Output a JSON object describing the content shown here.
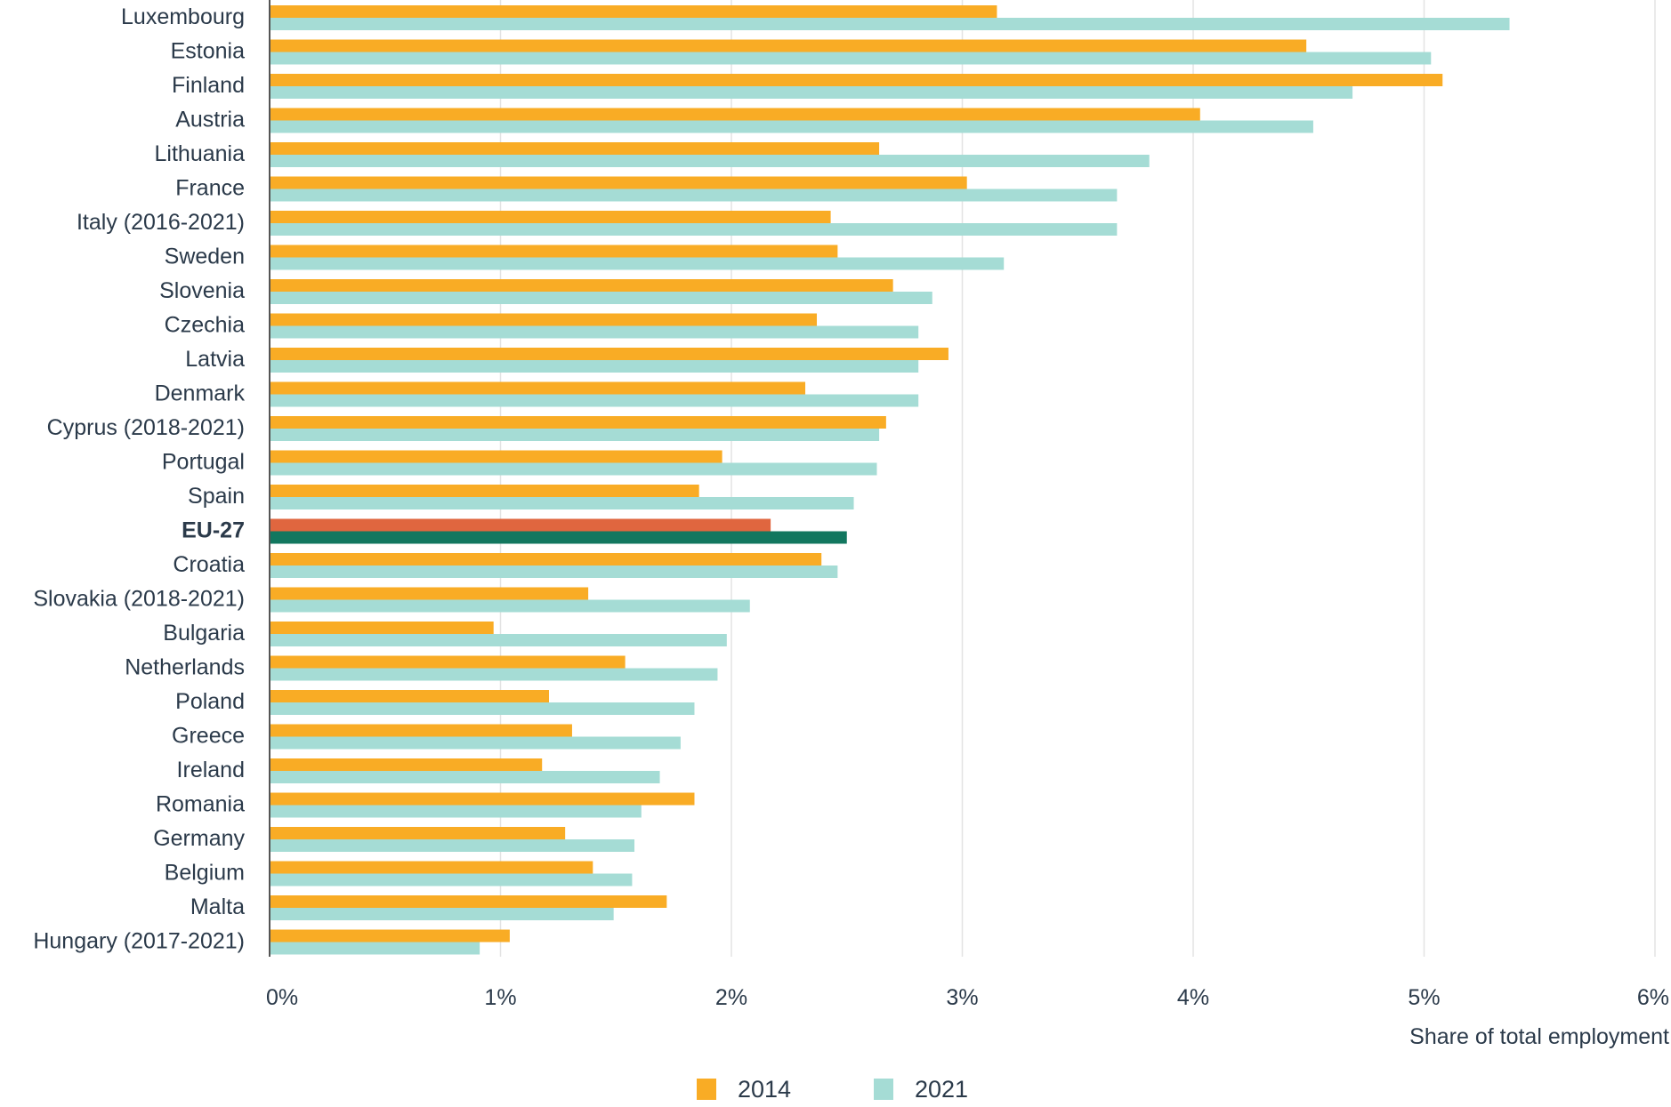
{
  "chart_data": {
    "type": "bar",
    "orientation": "horizontal",
    "xlabel": "Share of total employment",
    "xlim": [
      0,
      6
    ],
    "xticks": [
      "0%",
      "1%",
      "2%",
      "3%",
      "4%",
      "5%",
      "6%"
    ],
    "grid": "vertical",
    "legend_position": "bottom",
    "categories": [
      "Luxembourg",
      "Estonia",
      "Finland",
      "Austria",
      "Lithuania",
      "France",
      "Italy (2016-2021)",
      "Sweden",
      "Slovenia",
      "Czechia",
      "Latvia",
      "Denmark",
      "Cyprus (2018-2021)",
      "Portugal",
      "Spain",
      "EU-27",
      "Croatia",
      "Slovakia (2018-2021)",
      "Bulgaria",
      "Netherlands",
      "Poland",
      "Greece",
      "Ireland",
      "Romania",
      "Germany",
      "Belgium",
      "Malta",
      "Hungary (2017-2021)"
    ],
    "highlight_category": "EU-27",
    "series": [
      {
        "name": "2014",
        "color": "#f9ac25",
        "highlight_color": "#e0663f",
        "values": [
          3.15,
          4.49,
          5.08,
          4.03,
          2.64,
          3.02,
          2.43,
          2.46,
          2.7,
          2.37,
          2.94,
          2.32,
          2.67,
          1.96,
          1.86,
          2.17,
          2.39,
          1.38,
          0.97,
          1.54,
          1.21,
          1.31,
          1.18,
          1.84,
          1.28,
          1.4,
          1.72,
          1.04
        ]
      },
      {
        "name": "2021",
        "color": "#a5dcd5",
        "highlight_color": "#12775f",
        "values": [
          5.37,
          5.03,
          4.69,
          4.52,
          3.81,
          3.67,
          3.67,
          3.18,
          2.87,
          2.81,
          2.81,
          2.81,
          2.64,
          2.63,
          2.53,
          2.5,
          2.46,
          2.08,
          1.98,
          1.94,
          1.84,
          1.78,
          1.69,
          1.61,
          1.58,
          1.57,
          1.49,
          0.91
        ]
      }
    ]
  }
}
